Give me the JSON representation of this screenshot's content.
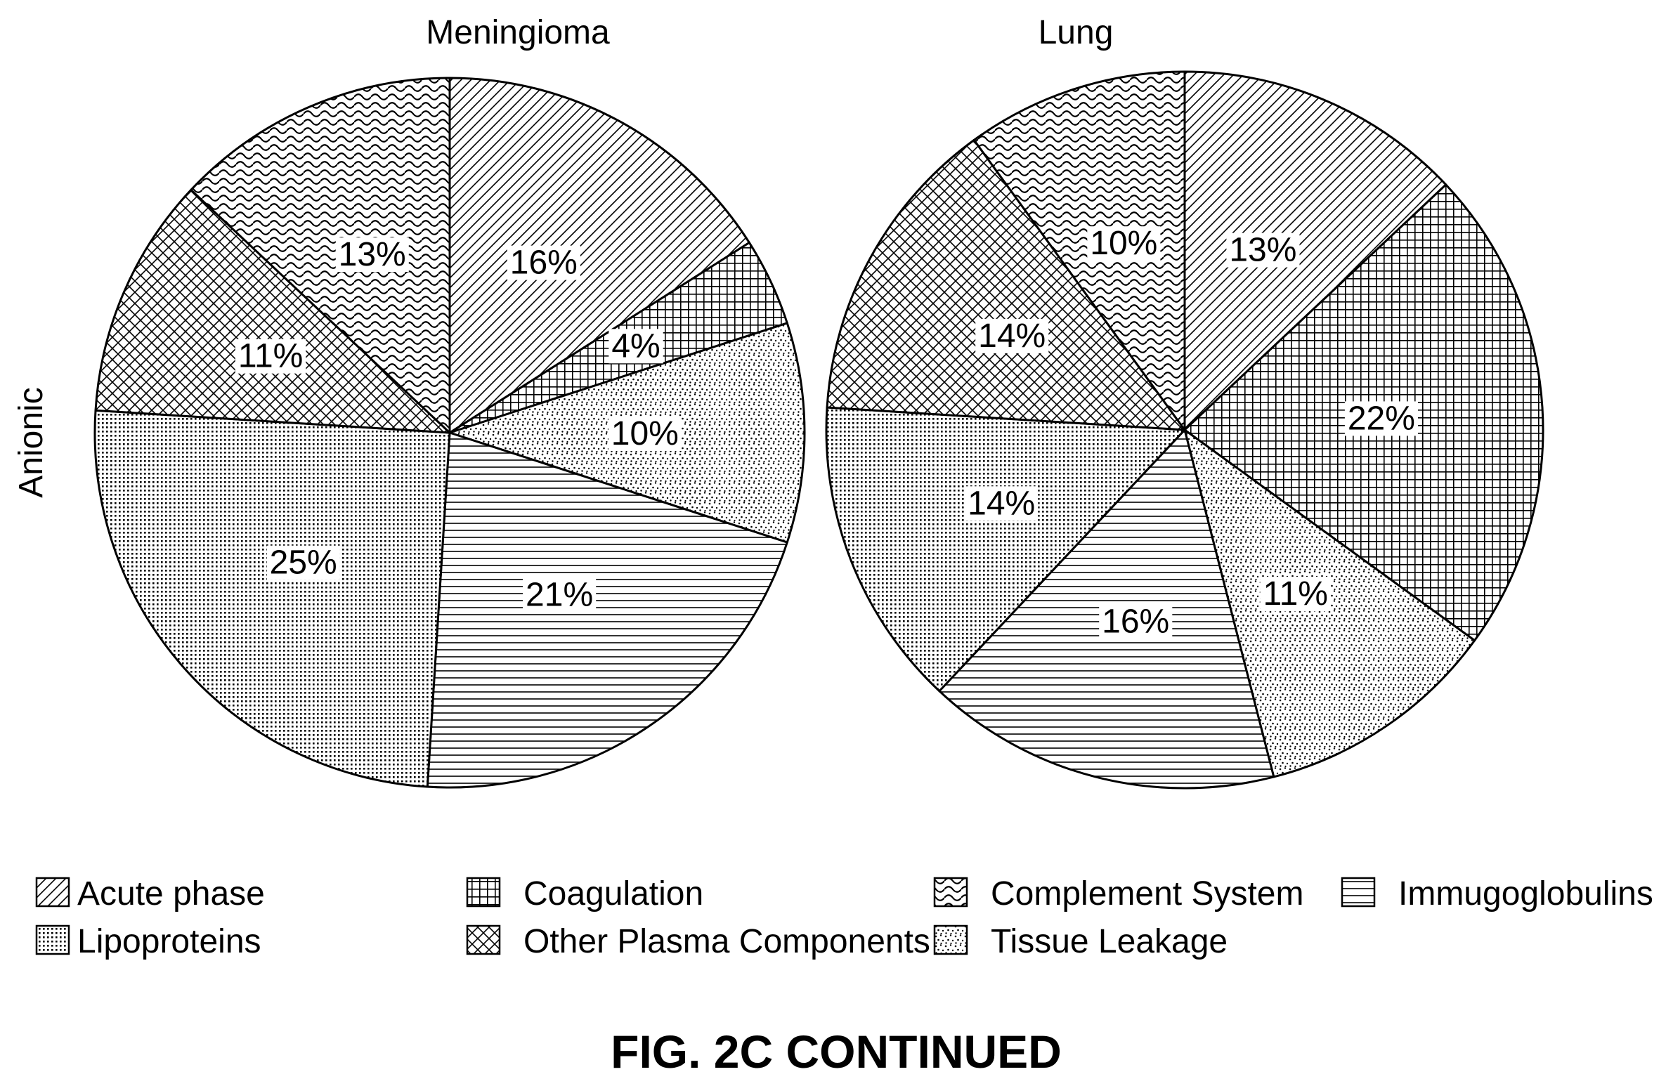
{
  "figure": {
    "caption": "FIG. 2C CONTINUED",
    "row_label": "Anionic"
  },
  "legend": {
    "items": [
      {
        "label": "Acute phase",
        "pattern": "acute"
      },
      {
        "label": "Coagulation",
        "pattern": "coag"
      },
      {
        "label": "Complement System",
        "pattern": "compl"
      },
      {
        "label": "Immugoglobulins",
        "pattern": "immuno"
      },
      {
        "label": "Lipoproteins",
        "pattern": "lipo"
      },
      {
        "label": "Other Plasma Components",
        "pattern": "other"
      },
      {
        "label": "Tissue Leakage",
        "pattern": "tissue"
      }
    ]
  },
  "chart_data": [
    {
      "type": "pie",
      "title": "Meningioma",
      "slices": [
        {
          "category": "Acute phase",
          "value": 16,
          "label": "16%"
        },
        {
          "category": "Coagulation",
          "value": 4,
          "label": "4%"
        },
        {
          "category": "Tissue Leakage",
          "value": 10,
          "label": "10%"
        },
        {
          "category": "Immugoglobulins",
          "value": 21,
          "label": "21%"
        },
        {
          "category": "Lipoproteins",
          "value": 25,
          "label": "25%"
        },
        {
          "category": "Other Plasma Components",
          "value": 11,
          "label": "11%"
        },
        {
          "category": "Complement System",
          "value": 13,
          "label": "13%"
        }
      ]
    },
    {
      "type": "pie",
      "title": "Lung",
      "slices": [
        {
          "category": "Acute phase",
          "value": 13,
          "label": "13%"
        },
        {
          "category": "Coagulation",
          "value": 22,
          "label": "22%"
        },
        {
          "category": "Tissue Leakage",
          "value": 11,
          "label": "11%"
        },
        {
          "category": "Immugoglobulins",
          "value": 16,
          "label": "16%"
        },
        {
          "category": "Lipoproteins",
          "value": 14,
          "label": "14%"
        },
        {
          "category": "Other Plasma Components",
          "value": 14,
          "label": "14%"
        },
        {
          "category": "Complement System",
          "value": 10,
          "label": "10%"
        }
      ]
    }
  ]
}
